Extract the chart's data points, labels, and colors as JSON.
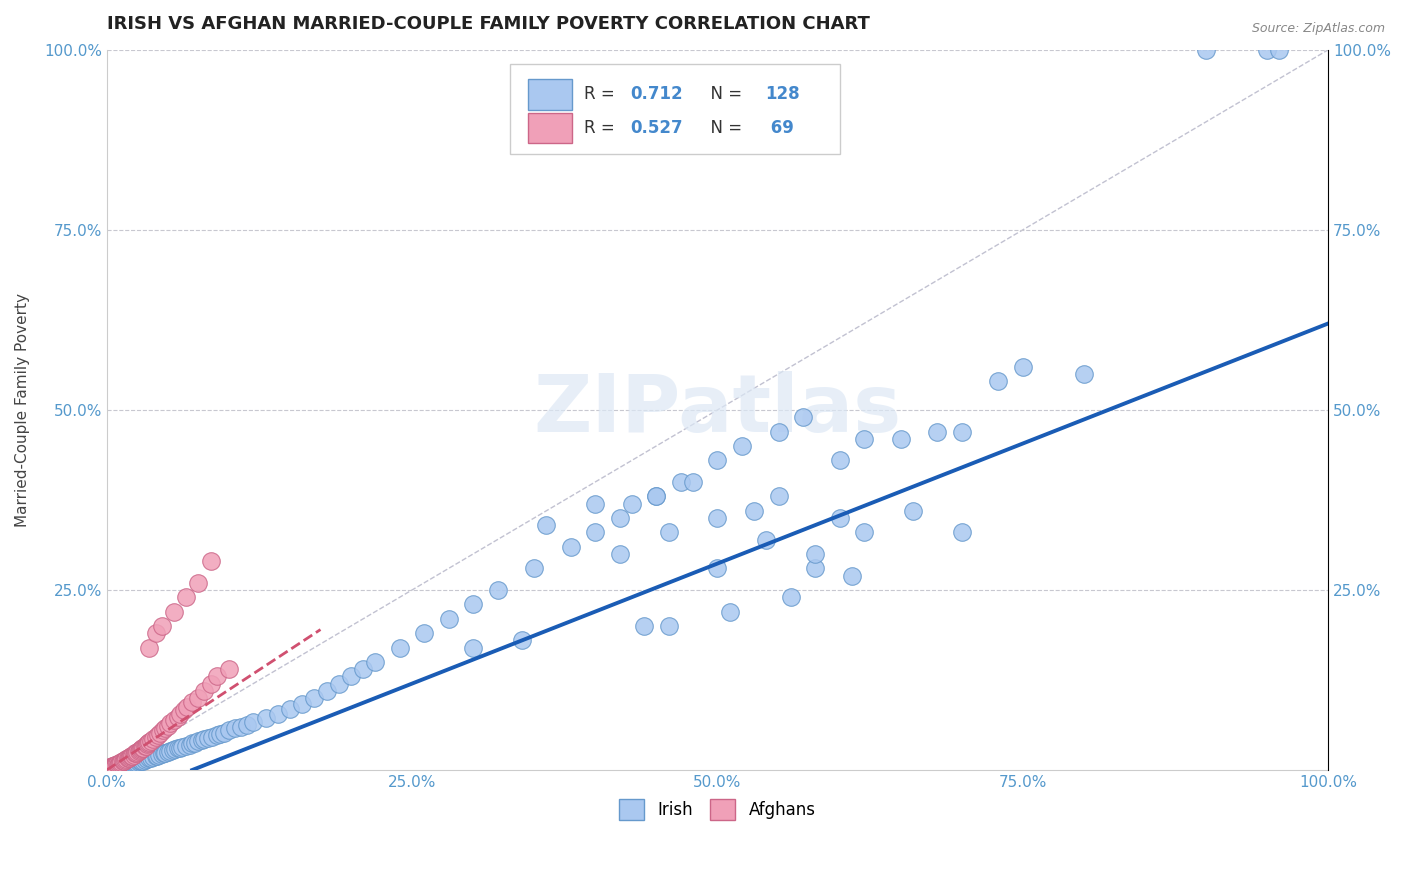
{
  "title": "IRISH VS AFGHAN MARRIED-COUPLE FAMILY POVERTY CORRELATION CHART",
  "source": "Source: ZipAtlas.com",
  "ylabel": "Married-Couple Family Poverty",
  "xlim": [
    0.0,
    1.0
  ],
  "ylim": [
    0.0,
    1.0
  ],
  "xticks": [
    0.0,
    0.25,
    0.5,
    0.75,
    1.0
  ],
  "xticklabels": [
    "0.0%",
    "25.0%",
    "50.0%",
    "75.0%",
    "100.0%"
  ],
  "yticks": [
    0.25,
    0.5,
    0.75,
    1.0
  ],
  "yticklabels": [
    "25.0%",
    "50.0%",
    "75.0%",
    "100.0%"
  ],
  "irish_color": "#aac8f0",
  "afghan_color": "#f0a0b8",
  "irish_edge_color": "#6699cc",
  "afghan_edge_color": "#cc6688",
  "irish_R": 0.712,
  "irish_N": 128,
  "afghan_R": 0.527,
  "afghan_N": 69,
  "irish_line_color": "#1a5cb5",
  "afghan_line_color": "#d05070",
  "grid_color": "#c8c8d0",
  "ref_line_color": "#bbbbcc",
  "tick_color": "#5599cc",
  "background_color": "#ffffff",
  "legend_R_color": "#4488cc",
  "title_fontsize": 13,
  "axis_label_fontsize": 11,
  "irish_scatter_x": [
    0.0,
    0.001,
    0.002,
    0.003,
    0.003,
    0.004,
    0.005,
    0.005,
    0.006,
    0.007,
    0.008,
    0.009,
    0.01,
    0.01,
    0.011,
    0.012,
    0.013,
    0.014,
    0.015,
    0.016,
    0.017,
    0.018,
    0.019,
    0.02,
    0.021,
    0.022,
    0.023,
    0.025,
    0.026,
    0.027,
    0.028,
    0.03,
    0.031,
    0.033,
    0.035,
    0.036,
    0.038,
    0.04,
    0.041,
    0.043,
    0.045,
    0.047,
    0.048,
    0.05,
    0.052,
    0.054,
    0.056,
    0.058,
    0.06,
    0.062,
    0.065,
    0.068,
    0.07,
    0.072,
    0.075,
    0.078,
    0.08,
    0.083,
    0.086,
    0.09,
    0.093,
    0.096,
    0.1,
    0.105,
    0.11,
    0.115,
    0.12,
    0.13,
    0.14,
    0.15,
    0.16,
    0.17,
    0.18,
    0.19,
    0.2,
    0.21,
    0.22,
    0.24,
    0.26,
    0.28,
    0.3,
    0.32,
    0.35,
    0.38,
    0.4,
    0.42,
    0.45,
    0.47,
    0.5,
    0.52,
    0.55,
    0.57,
    0.6,
    0.62,
    0.65,
    0.68,
    0.7,
    0.73,
    0.75,
    0.8,
    0.36,
    0.4,
    0.43,
    0.45,
    0.48,
    0.5,
    0.53,
    0.55,
    0.58,
    0.6,
    0.42,
    0.46,
    0.5,
    0.54,
    0.58,
    0.62,
    0.66,
    0.7,
    0.9,
    0.95,
    0.3,
    0.34,
    0.44,
    0.46,
    0.51,
    0.56,
    0.61,
    0.96
  ],
  "irish_scatter_y": [
    0.0,
    0.001,
    0.0,
    0.002,
    0.001,
    0.002,
    0.003,
    0.001,
    0.002,
    0.003,
    0.003,
    0.004,
    0.004,
    0.003,
    0.005,
    0.004,
    0.005,
    0.006,
    0.006,
    0.007,
    0.007,
    0.008,
    0.007,
    0.008,
    0.009,
    0.009,
    0.01,
    0.01,
    0.011,
    0.012,
    0.012,
    0.013,
    0.014,
    0.015,
    0.016,
    0.017,
    0.018,
    0.019,
    0.02,
    0.021,
    0.022,
    0.023,
    0.024,
    0.025,
    0.027,
    0.028,
    0.029,
    0.03,
    0.031,
    0.032,
    0.034,
    0.035,
    0.037,
    0.038,
    0.04,
    0.041,
    0.043,
    0.044,
    0.046,
    0.048,
    0.05,
    0.052,
    0.055,
    0.058,
    0.06,
    0.063,
    0.066,
    0.072,
    0.078,
    0.085,
    0.092,
    0.1,
    0.11,
    0.12,
    0.13,
    0.14,
    0.15,
    0.17,
    0.19,
    0.21,
    0.23,
    0.25,
    0.28,
    0.31,
    0.33,
    0.35,
    0.38,
    0.4,
    0.43,
    0.45,
    0.47,
    0.49,
    0.43,
    0.46,
    0.46,
    0.47,
    0.47,
    0.54,
    0.56,
    0.55,
    0.34,
    0.37,
    0.37,
    0.38,
    0.4,
    0.35,
    0.36,
    0.38,
    0.28,
    0.35,
    0.3,
    0.33,
    0.28,
    0.32,
    0.3,
    0.33,
    0.36,
    0.33,
    1.0,
    1.0,
    0.17,
    0.18,
    0.2,
    0.2,
    0.22,
    0.24,
    0.27,
    1.0
  ],
  "afghan_scatter_x": [
    0.0,
    0.001,
    0.001,
    0.002,
    0.002,
    0.003,
    0.003,
    0.004,
    0.004,
    0.005,
    0.005,
    0.006,
    0.007,
    0.007,
    0.008,
    0.009,
    0.01,
    0.011,
    0.012,
    0.013,
    0.014,
    0.015,
    0.016,
    0.017,
    0.018,
    0.019,
    0.02,
    0.021,
    0.022,
    0.023,
    0.024,
    0.025,
    0.026,
    0.027,
    0.028,
    0.029,
    0.03,
    0.031,
    0.032,
    0.033,
    0.034,
    0.035,
    0.036,
    0.038,
    0.04,
    0.042,
    0.044,
    0.046,
    0.048,
    0.05,
    0.052,
    0.055,
    0.058,
    0.06,
    0.063,
    0.066,
    0.07,
    0.075,
    0.08,
    0.085,
    0.09,
    0.1,
    0.035,
    0.04,
    0.045,
    0.055,
    0.065,
    0.075,
    0.085
  ],
  "afghan_scatter_y": [
    0.0,
    0.001,
    0.002,
    0.001,
    0.003,
    0.002,
    0.004,
    0.003,
    0.005,
    0.004,
    0.006,
    0.005,
    0.007,
    0.006,
    0.008,
    0.007,
    0.009,
    0.01,
    0.011,
    0.012,
    0.013,
    0.014,
    0.015,
    0.016,
    0.017,
    0.018,
    0.019,
    0.02,
    0.021,
    0.023,
    0.024,
    0.025,
    0.026,
    0.028,
    0.029,
    0.03,
    0.031,
    0.033,
    0.034,
    0.036,
    0.037,
    0.039,
    0.04,
    0.043,
    0.046,
    0.049,
    0.052,
    0.055,
    0.058,
    0.061,
    0.065,
    0.07,
    0.074,
    0.078,
    0.083,
    0.088,
    0.095,
    0.1,
    0.11,
    0.12,
    0.13,
    0.14,
    0.17,
    0.19,
    0.2,
    0.22,
    0.24,
    0.26,
    0.29
  ],
  "irish_line_x": [
    0.07,
    1.0
  ],
  "irish_line_y": [
    0.0,
    0.62
  ],
  "afghan_line_x": [
    0.0,
    0.175
  ],
  "afghan_line_y": [
    0.0,
    0.195
  ]
}
